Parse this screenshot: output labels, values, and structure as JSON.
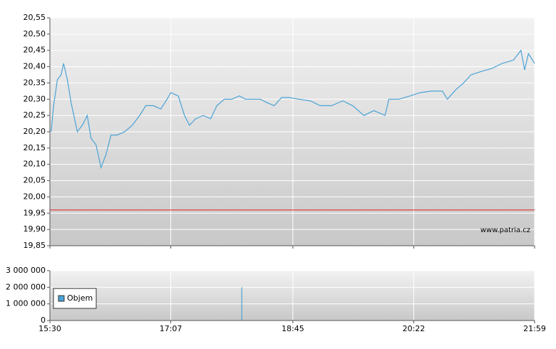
{
  "watermark": "www.patria.cz",
  "chart_data": [
    {
      "type": "line",
      "x": [
        "15:31",
        "15:33",
        "15:36",
        "15:39",
        "15:41",
        "15:44",
        "15:47",
        "15:52",
        "15:56",
        "16:00",
        "16:03",
        "16:07",
        "16:11",
        "16:15",
        "16:19",
        "16:24",
        "16:30",
        "16:36",
        "16:42",
        "16:47",
        "16:53",
        "16:59",
        "17:04",
        "17:07",
        "17:13",
        "17:18",
        "17:22",
        "17:27",
        "17:33",
        "17:39",
        "17:44",
        "17:50",
        "17:56",
        "18:02",
        "18:07",
        "18:13",
        "18:19",
        "18:24",
        "18:30",
        "18:36",
        "18:42",
        "18:50",
        "18:59",
        "19:07",
        "19:16",
        "19:25",
        "19:33",
        "19:42",
        "19:50",
        "19:59",
        "20:02",
        "20:10",
        "20:19",
        "20:27",
        "20:36",
        "20:45",
        "20:49",
        "20:56",
        "21:02",
        "21:08",
        "21:16",
        "21:25",
        "21:33",
        "21:42",
        "21:48",
        "21:51",
        "21:54",
        "21:59"
      ],
      "values": [
        20.2,
        20.28,
        20.36,
        20.375,
        20.41,
        20.36,
        20.29,
        20.2,
        20.22,
        20.25,
        20.18,
        20.16,
        20.09,
        20.13,
        20.19,
        20.19,
        20.2,
        20.22,
        20.25,
        20.28,
        20.28,
        20.27,
        20.3,
        20.32,
        20.31,
        20.25,
        20.22,
        20.24,
        20.25,
        20.24,
        20.28,
        20.3,
        20.3,
        20.31,
        20.3,
        20.3,
        20.3,
        20.29,
        20.28,
        20.305,
        20.305,
        20.3,
        20.295,
        20.28,
        20.28,
        20.295,
        20.28,
        20.25,
        20.265,
        20.25,
        20.3,
        20.3,
        20.31,
        20.32,
        20.325,
        20.325,
        20.3,
        20.33,
        20.35,
        20.375,
        20.385,
        20.395,
        20.41,
        20.42,
        20.45,
        20.39,
        20.44,
        20.41
      ],
      "color": "#4aa3d6",
      "xlim": [
        "15:30",
        "21:59"
      ],
      "ylim": [
        19.85,
        20.55
      ],
      "yticks": [
        {
          "value": 19.85,
          "label": "19,85"
        },
        {
          "value": 19.9,
          "label": "19,90"
        },
        {
          "value": 19.95,
          "label": "19,95"
        },
        {
          "value": 20.0,
          "label": "20,00"
        },
        {
          "value": 20.05,
          "label": "20,05"
        },
        {
          "value": 20.1,
          "label": "20,10"
        },
        {
          "value": 20.15,
          "label": "20,15"
        },
        {
          "value": 20.2,
          "label": "20,20"
        },
        {
          "value": 20.25,
          "label": "20,25"
        },
        {
          "value": 20.3,
          "label": "20,30"
        },
        {
          "value": 20.35,
          "label": "20,35"
        },
        {
          "value": 20.4,
          "label": "20,40"
        },
        {
          "value": 20.45,
          "label": "20,45"
        },
        {
          "value": 20.5,
          "label": "20,50"
        },
        {
          "value": 20.55,
          "label": "20,55"
        }
      ],
      "reference_line": {
        "value": 19.96,
        "color": "#e04040"
      },
      "grid": true
    },
    {
      "type": "bar",
      "x": [
        "18:04",
        "18:50",
        "19:48",
        "21:45"
      ],
      "series": [
        {
          "name": "Objem",
          "color": "#4aa3d6",
          "values": [
            2000000,
            20000,
            30000,
            40000
          ]
        }
      ],
      "xlim": [
        "15:30",
        "21:59"
      ],
      "xticks": [
        "15:30",
        "17:07",
        "18:45",
        "20:22",
        "21:59"
      ],
      "ylim": [
        0,
        3000000
      ],
      "yticks": [
        0,
        {
          "value": 1000000,
          "label": "1 000 000"
        },
        {
          "value": 2000000,
          "label": "2 000 000"
        },
        {
          "value": 3000000,
          "label": "3 000 000"
        }
      ],
      "grid": true
    }
  ]
}
